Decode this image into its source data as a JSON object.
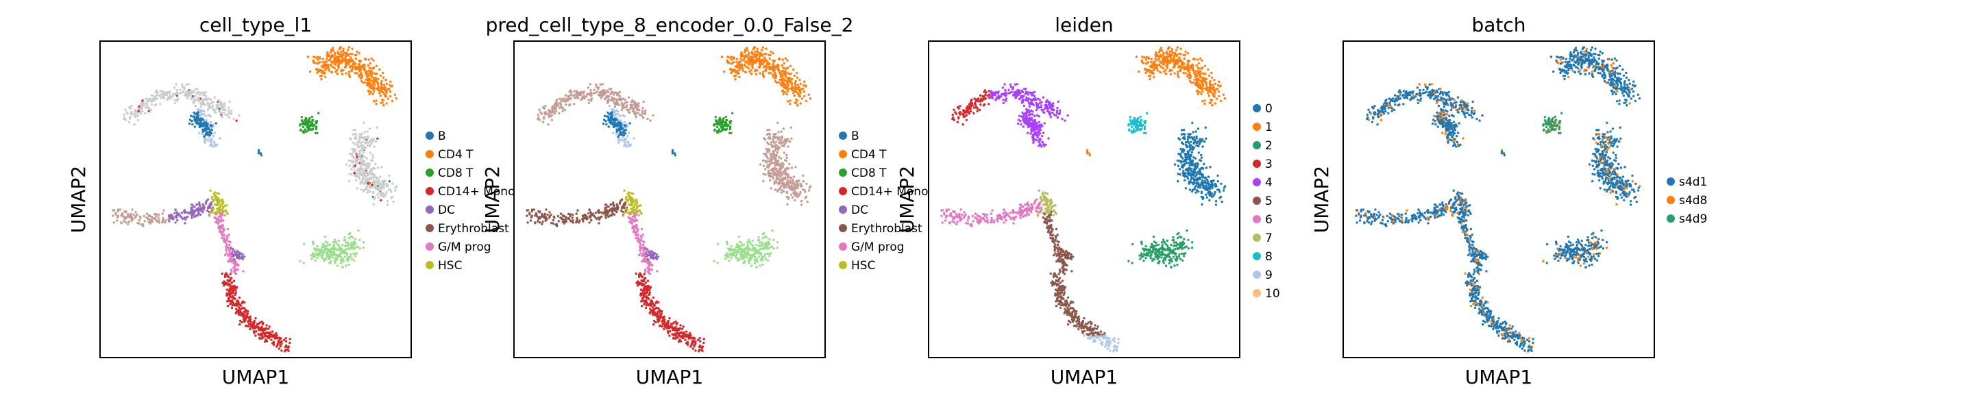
{
  "figure": {
    "panels": [
      {
        "title": "cell_type_l1",
        "xlabel": "UMAP1",
        "ylabel": "UMAP2",
        "legend": [
          {
            "label": "B",
            "color": "#1f77b4"
          },
          {
            "label": "CD4 T",
            "color": "#ff7f0e"
          },
          {
            "label": "CD8 T",
            "color": "#2ca02c"
          },
          {
            "label": "CD14+ Mono",
            "color": "#d62728"
          },
          {
            "label": "DC",
            "color": "#9467bd"
          },
          {
            "label": "Erythroblast",
            "color": "#8c564b"
          },
          {
            "label": "G/M prog",
            "color": "#e377c2"
          },
          {
            "label": "HSC",
            "color": "#bcbd22"
          }
        ]
      },
      {
        "title": "pred_cell_type_8_encoder_0.0_False_2",
        "xlabel": "UMAP1",
        "ylabel": "UMAP2",
        "legend": [
          {
            "label": "B",
            "color": "#1f77b4"
          },
          {
            "label": "CD4 T",
            "color": "#ff7f0e"
          },
          {
            "label": "CD8 T",
            "color": "#2ca02c"
          },
          {
            "label": "CD14+ Mono",
            "color": "#d62728"
          },
          {
            "label": "DC",
            "color": "#9467bd"
          },
          {
            "label": "Erythroblast",
            "color": "#8c564b"
          },
          {
            "label": "G/M prog",
            "color": "#e377c2"
          },
          {
            "label": "HSC",
            "color": "#bcbd22"
          }
        ]
      },
      {
        "title": "leiden",
        "xlabel": "UMAP1",
        "ylabel": "UMAP2",
        "legend": [
          {
            "label": "0",
            "color": "#1f77b4"
          },
          {
            "label": "1",
            "color": "#ff7f0e"
          },
          {
            "label": "2",
            "color": "#279e68"
          },
          {
            "label": "3",
            "color": "#d62728"
          },
          {
            "label": "4",
            "color": "#aa40fc"
          },
          {
            "label": "5",
            "color": "#8c564b"
          },
          {
            "label": "6",
            "color": "#e377c2"
          },
          {
            "label": "7",
            "color": "#b5bd61"
          },
          {
            "label": "8",
            "color": "#17becf"
          },
          {
            "label": "9",
            "color": "#aec7e8"
          },
          {
            "label": "10",
            "color": "#ffbb78"
          }
        ]
      },
      {
        "title": "batch",
        "xlabel": "UMAP1",
        "ylabel": "UMAP2",
        "legend": [
          {
            "label": "s4d1",
            "color": "#1f77b4"
          },
          {
            "label": "s4d8",
            "color": "#ff7f0e"
          },
          {
            "label": "s4d9",
            "color": "#279e68"
          }
        ]
      }
    ]
  },
  "chart_data": {
    "type": "scatter",
    "description_of_data": "UMAP embeddings colored by categorical labels; axes have no ticks",
    "grid": false,
    "legend_placement": "right"
  }
}
